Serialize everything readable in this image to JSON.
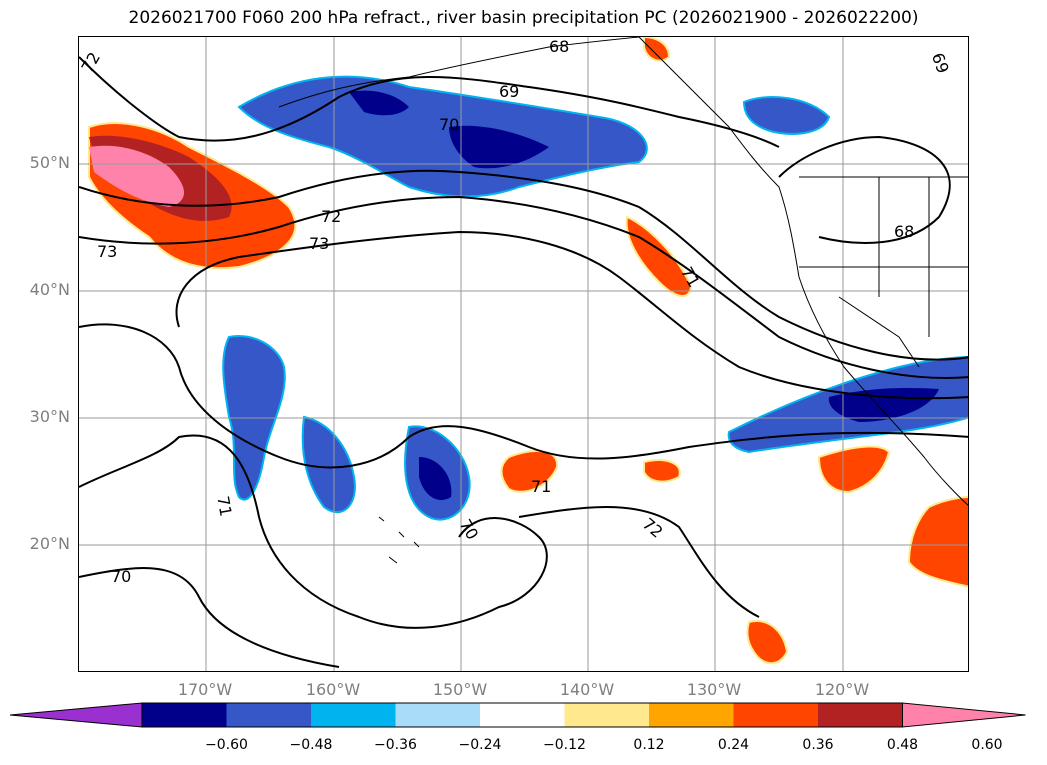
{
  "title": "2026021700 F060 200 hPa refract., river basin precipitation PC (2026021900 - 2026022200)",
  "lat_labels": [
    "50°N",
    "40°N",
    "30°N",
    "20°N"
  ],
  "lon_labels": [
    "170°W",
    "160°W",
    "150°W",
    "140°W",
    "130°W",
    "120°W"
  ],
  "contour_labels": [
    "72",
    "68",
    "69",
    "70",
    "72",
    "73",
    "73",
    "71",
    "68",
    "71",
    "70",
    "72",
    "71",
    "70",
    "69"
  ],
  "colorbar": {
    "levels": [
      "−0.60",
      "−0.48",
      "−0.36",
      "−0.24",
      "−0.12",
      "0.12",
      "0.24",
      "0.36",
      "0.48",
      "0.60"
    ],
    "colors": [
      "#9b30d0",
      "#00008b",
      "#3657c8",
      "#00b4f0",
      "#a8dcf8",
      "#ffffff",
      "#ffe98c",
      "#ffa500",
      "#ff4500",
      "#b22222",
      "#ff82aa"
    ]
  },
  "colors": {
    "contour": "#000000",
    "grid": "#999999",
    "coast": "#000000"
  }
}
